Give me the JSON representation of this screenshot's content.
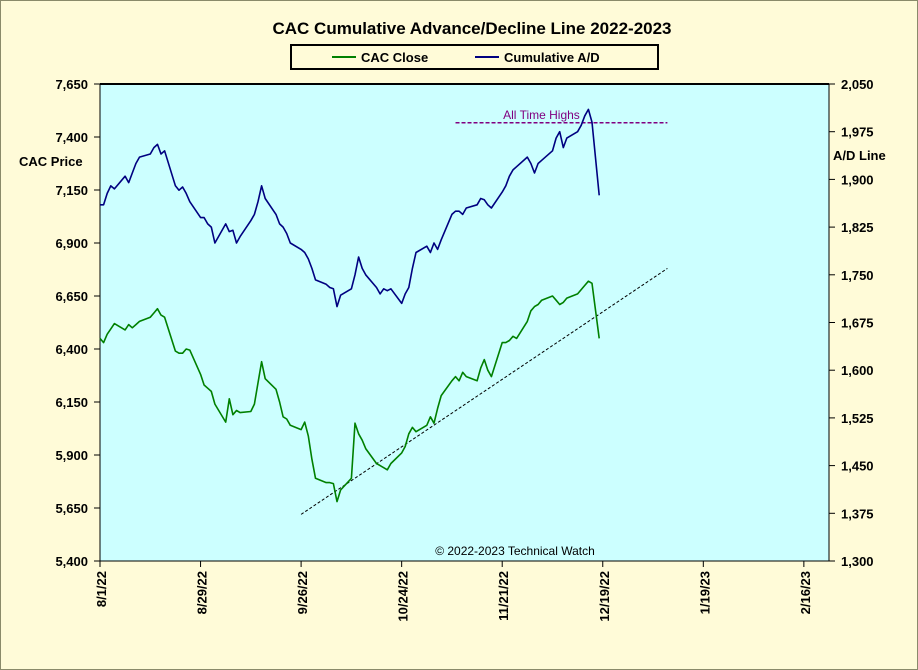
{
  "chart_data": {
    "type": "line",
    "title": "CAC Cumulative  Advance/Decline  Line  2022-2023",
    "ylabel_left": "CAC Price",
    "ylabel_right": "A/D Line",
    "annotation": "All Time Highs",
    "watermark": "© 2022-2023  Technical  Watch",
    "colors": {
      "cac": "#008000",
      "ad": "#000080",
      "plot_bg": "#ccffff",
      "page_bg": "#fffbd8",
      "ath": "#800080",
      "trend": "#000000"
    },
    "y_left": {
      "min": 5400,
      "max": 7650,
      "ticks": [
        "7,650",
        "7,400",
        "7,150",
        "6,900",
        "6,650",
        "6,400",
        "6,150",
        "5,900",
        "5,650",
        "5,400"
      ]
    },
    "y_right": {
      "min": 1300,
      "max": 2050,
      "ticks": [
        "2,050",
        "1,975",
        "1,900",
        "1,825",
        "1,750",
        "1,675",
        "1,600",
        "1,525",
        "1,450",
        "1,375",
        "1,300"
      ]
    },
    "x_ticks": [
      "8/1/22",
      "8/29/22",
      "9/26/22",
      "10/24/22",
      "11/21/22",
      "12/19/22",
      "1/19/23",
      "2/16/23"
    ],
    "x_range_days": [
      0,
      203
    ],
    "x_tick_days": [
      0,
      28,
      56,
      84,
      112,
      140,
      168,
      196
    ],
    "series": [
      {
        "name": "CAC Close",
        "x": [
          0,
          1,
          2,
          3,
          4,
          7,
          8,
          9,
          10,
          11,
          14,
          15,
          16,
          17,
          18,
          21,
          22,
          23,
          24,
          25,
          28,
          29,
          30,
          31,
          32,
          35,
          36,
          37,
          38,
          39,
          42,
          43,
          44,
          45,
          46,
          49,
          50,
          51,
          52,
          53,
          56,
          57,
          58,
          59,
          60,
          63,
          64,
          65,
          66,
          67,
          70,
          71,
          72,
          73,
          74,
          77,
          78,
          79,
          80,
          81,
          84,
          85,
          86,
          87,
          88,
          91,
          92,
          93,
          94,
          95,
          98,
          99,
          100,
          101,
          102,
          105,
          106,
          107,
          108,
          109,
          112,
          113,
          114,
          115,
          116,
          119,
          120,
          121,
          122,
          123,
          126,
          127,
          128,
          129,
          130,
          133,
          134,
          135,
          136,
          137,
          139
        ],
        "values": [
          6450,
          6430,
          6470,
          6495,
          6520,
          6490,
          6515,
          6500,
          6515,
          6530,
          6550,
          6570,
          6590,
          6560,
          6550,
          6390,
          6380,
          6380,
          6400,
          6395,
          6280,
          6230,
          6215,
          6200,
          6140,
          6055,
          6165,
          6090,
          6110,
          6100,
          6105,
          6140,
          6240,
          6340,
          6260,
          6210,
          6150,
          6080,
          6070,
          6040,
          6020,
          6055,
          5990,
          5880,
          5790,
          5770,
          5770,
          5765,
          5680,
          5735,
          5790,
          6050,
          6000,
          5970,
          5930,
          5860,
          5850,
          5840,
          5830,
          5860,
          5910,
          5940,
          6000,
          6030,
          6010,
          6040,
          6080,
          6050,
          6120,
          6180,
          6250,
          6270,
          6250,
          6290,
          6270,
          6250,
          6310,
          6350,
          6300,
          6270,
          6430,
          6430,
          6440,
          6460,
          6450,
          6530,
          6580,
          6600,
          6610,
          6630,
          6650,
          6630,
          6610,
          6620,
          6640,
          6660,
          6680,
          6700,
          6720,
          6710,
          6450
        ]
      },
      {
        "name": "Cumulative A/D",
        "x": [
          0,
          1,
          2,
          3,
          4,
          7,
          8,
          9,
          10,
          11,
          14,
          15,
          16,
          17,
          18,
          21,
          22,
          23,
          24,
          25,
          28,
          29,
          30,
          31,
          32,
          35,
          36,
          37,
          38,
          39,
          42,
          43,
          44,
          45,
          46,
          49,
          50,
          51,
          52,
          53,
          56,
          57,
          58,
          59,
          60,
          63,
          64,
          65,
          66,
          67,
          70,
          71,
          72,
          73,
          74,
          77,
          78,
          79,
          80,
          81,
          84,
          85,
          86,
          87,
          88,
          91,
          92,
          93,
          94,
          95,
          98,
          99,
          100,
          101,
          102,
          105,
          106,
          107,
          108,
          109,
          112,
          113,
          114,
          115,
          116,
          119,
          120,
          121,
          122,
          123,
          126,
          127,
          128,
          129,
          130,
          133,
          134,
          135,
          136,
          137,
          139
        ],
        "values": [
          1860,
          1860,
          1878,
          1890,
          1885,
          1905,
          1895,
          1910,
          1925,
          1935,
          1940,
          1950,
          1955,
          1940,
          1945,
          1890,
          1883,
          1888,
          1878,
          1865,
          1840,
          1840,
          1830,
          1825,
          1800,
          1830,
          1818,
          1820,
          1800,
          1810,
          1835,
          1845,
          1865,
          1890,
          1870,
          1845,
          1830,
          1825,
          1815,
          1800,
          1790,
          1785,
          1775,
          1760,
          1742,
          1735,
          1730,
          1728,
          1700,
          1718,
          1728,
          1750,
          1778,
          1760,
          1750,
          1730,
          1720,
          1728,
          1725,
          1728,
          1705,
          1720,
          1730,
          1760,
          1785,
          1795,
          1785,
          1800,
          1790,
          1805,
          1845,
          1850,
          1850,
          1845,
          1855,
          1860,
          1870,
          1868,
          1860,
          1855,
          1880,
          1890,
          1905,
          1915,
          1920,
          1935,
          1925,
          1910,
          1925,
          1930,
          1945,
          1965,
          1975,
          1950,
          1965,
          1975,
          1985,
          2000,
          2010,
          1990,
          1875
        ]
      }
    ],
    "all_time_highs": {
      "x": [
        99,
        158
      ],
      "value": 1989
    },
    "trendline": {
      "x": [
        56,
        158
      ],
      "values": [
        5620,
        6780
      ]
    }
  }
}
